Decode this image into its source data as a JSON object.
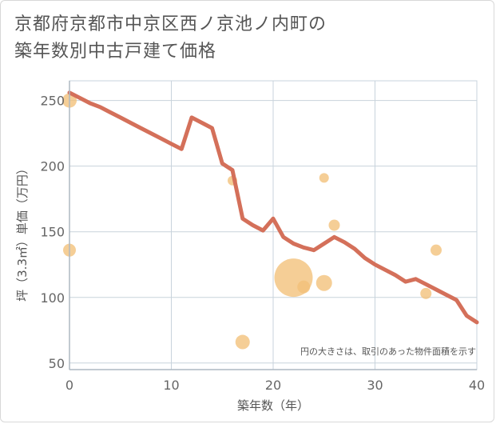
{
  "chart_data": {
    "type": "scatter",
    "title_lines": [
      "京都府京都市中京区西ノ京池ノ内町の",
      "築年数別中古戸建て価格"
    ],
    "xlabel": "築年数（年）",
    "ylabel": "坪（3.3㎡）単価（万円）",
    "xlim": [
      0,
      40
    ],
    "ylim": [
      45,
      265
    ],
    "x_ticks": [
      0,
      10,
      20,
      30,
      40
    ],
    "y_ticks": [
      50,
      100,
      150,
      200,
      250
    ],
    "note": "円の大きさは、取引のあった物件面積を示す",
    "colors": {
      "line": "#d4705a",
      "bubble": "#f2c078",
      "grid": "#c8d3dc",
      "axis": "#aeb8c2"
    },
    "trend_line": {
      "x": [
        0,
        1,
        2,
        3,
        4,
        5,
        6,
        7,
        8,
        9,
        10,
        11,
        12,
        13,
        14,
        15,
        16,
        17,
        18,
        19,
        20,
        21,
        22,
        23,
        24,
        25,
        26,
        27,
        28,
        29,
        30,
        31,
        32,
        33,
        34,
        35,
        36,
        37,
        38,
        39,
        40
      ],
      "y": [
        256,
        252,
        248,
        245,
        241,
        237,
        233,
        229,
        225,
        221,
        217,
        213,
        237,
        233,
        229,
        202,
        197,
        160,
        155,
        151,
        160,
        146,
        141,
        138,
        136,
        141,
        146,
        142,
        137,
        130,
        125,
        121,
        117,
        112,
        114,
        110,
        106,
        102,
        98,
        86,
        81
      ]
    },
    "bubbles": [
      {
        "x": 0,
        "y": 250,
        "size": 9
      },
      {
        "x": 0,
        "y": 136,
        "size": 8
      },
      {
        "x": 16,
        "y": 189,
        "size": 6
      },
      {
        "x": 17,
        "y": 66,
        "size": 9
      },
      {
        "x": 22,
        "y": 115,
        "size": 24
      },
      {
        "x": 23,
        "y": 108,
        "size": 8
      },
      {
        "x": 25,
        "y": 191,
        "size": 6
      },
      {
        "x": 25,
        "y": 111,
        "size": 10
      },
      {
        "x": 26,
        "y": 155,
        "size": 7
      },
      {
        "x": 35,
        "y": 103,
        "size": 7
      },
      {
        "x": 36,
        "y": 136,
        "size": 7
      }
    ]
  }
}
